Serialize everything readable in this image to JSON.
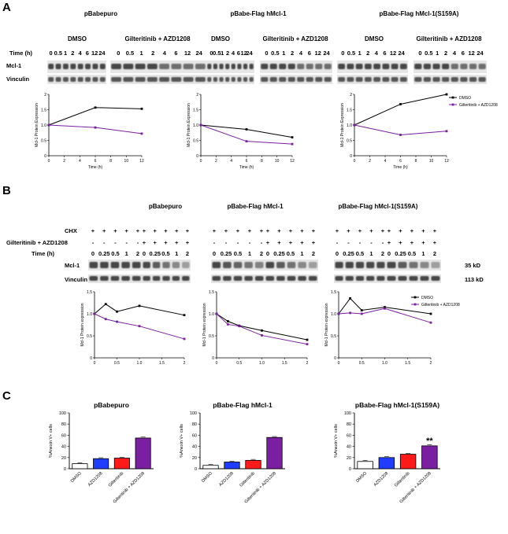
{
  "panels": {
    "a": "A",
    "b": "B",
    "c": "C"
  },
  "blot_a": {
    "groups": [
      "pBabepuro",
      "pBabe-Flag hMcl-1",
      "pBabe-Flag hMcl-1(S159A)"
    ],
    "treat_dmso": "DMSO",
    "treat_combo": "Gilteritinib + AZD1208",
    "time_label": "Time (h)",
    "times": [
      "0",
      "0.5",
      "1",
      "2",
      "4",
      "6",
      "12",
      "24"
    ],
    "rows": [
      "Mcl-1",
      "Vinculin"
    ]
  },
  "blot_b": {
    "groups": [
      "pBabepuro",
      "pBabe-Flag hMcl-1",
      "pBabe-Flag hMcl-1(S159A)"
    ],
    "cond_chx": "CHX",
    "cond_drug": "Gilteritinib + AZD1208",
    "time_label": "Time (h)",
    "plus": "+",
    "minus": "-",
    "times": [
      "0",
      "0.25",
      "0.5",
      "1",
      "2"
    ],
    "rows": [
      "Mcl-1",
      "Vinculin"
    ],
    "size_mcl1": "35 kD",
    "size_vinculin": "113 kD"
  },
  "chart_data": [
    {
      "id": "A1",
      "type": "line",
      "title": "",
      "xlabel": "Time (h)",
      "ylabel": "Mcl-1 Protein Expression",
      "xlim": [
        0,
        12
      ],
      "ylim": [
        0,
        2.0
      ],
      "xticks": [
        0,
        2,
        4,
        6,
        8,
        10,
        12
      ],
      "yticks": [
        0,
        0.5,
        1.0,
        1.5,
        2.0
      ],
      "series": [
        {
          "name": "DMSO",
          "color": "#000000",
          "x": [
            0,
            6,
            12
          ],
          "y": [
            1.0,
            1.57,
            1.53
          ]
        },
        {
          "name": "Gilteritinib + AZD1208",
          "color": "#7a1fa2",
          "x": [
            0,
            6,
            12
          ],
          "y": [
            1.0,
            0.92,
            0.72
          ]
        }
      ]
    },
    {
      "id": "A2",
      "type": "line",
      "title": "",
      "xlabel": "Time (h)",
      "ylabel": "Mcl-1 Protein Expression",
      "xlim": [
        0,
        12
      ],
      "ylim": [
        0,
        2.0
      ],
      "xticks": [
        0,
        2,
        4,
        6,
        8,
        10,
        12
      ],
      "yticks": [
        0,
        0.5,
        1.0,
        1.5,
        2.0
      ],
      "series": [
        {
          "name": "DMSO",
          "color": "#000000",
          "x": [
            0,
            6,
            12
          ],
          "y": [
            1.0,
            0.86,
            0.6
          ]
        },
        {
          "name": "Gilteritinib + AZD1208",
          "color": "#7a1fa2",
          "x": [
            0,
            6,
            12
          ],
          "y": [
            1.0,
            0.47,
            0.38
          ]
        }
      ]
    },
    {
      "id": "A3",
      "type": "line",
      "title": "",
      "xlabel": "Time (h)",
      "ylabel": "Mcl-1 Protein Expression",
      "xlim": [
        0,
        12
      ],
      "ylim": [
        0,
        2.0
      ],
      "xticks": [
        0,
        2,
        4,
        6,
        8,
        10,
        12
      ],
      "yticks": [
        0,
        0.5,
        1.0,
        1.5,
        2.0
      ],
      "legend": [
        "DMSO",
        "Gilteritinib + AZD1208"
      ],
      "series": [
        {
          "name": "DMSO",
          "color": "#000000",
          "x": [
            0,
            6,
            12
          ],
          "y": [
            1.0,
            1.68,
            2.0
          ]
        },
        {
          "name": "Gilteritinib + AZD1208",
          "color": "#7a1fa2",
          "x": [
            0,
            6,
            12
          ],
          "y": [
            1.0,
            0.68,
            0.8
          ]
        }
      ]
    },
    {
      "id": "B1",
      "type": "line",
      "title": "",
      "xlabel": "",
      "ylabel": "Mcl-1 Protein expression",
      "xlim": [
        0,
        2
      ],
      "ylim": [
        0,
        1.5
      ],
      "xticks": [
        0,
        0.5,
        1.0,
        1.5,
        2.0
      ],
      "yticks": [
        0,
        0.5,
        1.0,
        1.5
      ],
      "series": [
        {
          "name": "DMSO",
          "color": "#000000",
          "x": [
            0,
            0.25,
            0.5,
            1,
            2
          ],
          "y": [
            1.0,
            1.22,
            1.05,
            1.18,
            0.97
          ]
        },
        {
          "name": "Gilteritinib + AZD1208",
          "color": "#7a1fa2",
          "x": [
            0,
            0.25,
            0.5,
            1,
            2
          ],
          "y": [
            1.0,
            0.88,
            0.82,
            0.72,
            0.43
          ]
        }
      ]
    },
    {
      "id": "B2",
      "type": "line",
      "title": "",
      "xlabel": "",
      "ylabel": "Mcl-1 Protein expression",
      "xlim": [
        0,
        2
      ],
      "ylim": [
        0,
        1.5
      ],
      "xticks": [
        0,
        0.5,
        1.0,
        1.5,
        2.0
      ],
      "yticks": [
        0,
        0.5,
        1.0,
        1.5
      ],
      "series": [
        {
          "name": "DMSO",
          "color": "#000000",
          "x": [
            0,
            0.25,
            0.5,
            1,
            2
          ],
          "y": [
            1.0,
            0.83,
            0.73,
            0.62,
            0.41
          ]
        },
        {
          "name": "Gilteritinib + AZD1208",
          "color": "#7a1fa2",
          "x": [
            0,
            0.25,
            0.5,
            1,
            2
          ],
          "y": [
            1.0,
            0.76,
            0.72,
            0.51,
            0.31
          ]
        }
      ]
    },
    {
      "id": "B3",
      "type": "line",
      "title": "",
      "xlabel": "",
      "ylabel": "Mcl-1 Protein expression",
      "xlim": [
        0,
        2
      ],
      "ylim": [
        0,
        1.5
      ],
      "xticks": [
        0,
        0.5,
        1.0,
        1.5,
        2.0
      ],
      "yticks": [
        0,
        0.5,
        1.0,
        1.5
      ],
      "legend": [
        "DMSO",
        "Gilteritinib + AZD1208"
      ],
      "series": [
        {
          "name": "DMSO",
          "color": "#000000",
          "x": [
            0,
            0.25,
            0.5,
            1,
            2
          ],
          "y": [
            1.0,
            1.35,
            1.08,
            1.15,
            1.0
          ]
        },
        {
          "name": "Gilteritinib + AZD1208",
          "color": "#7a1fa2",
          "x": [
            0,
            0.25,
            0.5,
            1,
            2
          ],
          "y": [
            1.0,
            1.02,
            1.0,
            1.12,
            0.8
          ]
        }
      ]
    },
    {
      "id": "C1",
      "type": "bar",
      "title": "pBabepuro",
      "ylabel": "%Anexin V+ cells",
      "ylim": [
        0,
        100
      ],
      "yticks": [
        0,
        20,
        40,
        60,
        80,
        100
      ],
      "categories": [
        "DMSO",
        "AZD1208",
        "Gilteritinib",
        "Gilteritinib + AZD1208"
      ],
      "values": [
        9,
        18,
        19,
        55
      ],
      "colors": [
        "#ffffff",
        "#1f3cff",
        "#ff1a1a",
        "#7a1fa2"
      ],
      "annotation": ""
    },
    {
      "id": "C2",
      "type": "bar",
      "title": "pBabe-Flag hMcl-1",
      "ylabel": "%Anexin V+ cells",
      "ylim": [
        0,
        100
      ],
      "yticks": [
        0,
        20,
        40,
        60,
        80,
        100
      ],
      "categories": [
        "DMSO",
        "AZD1208",
        "Gilteritinib",
        "Gilteritinib + AZD1208"
      ],
      "values": [
        6,
        12,
        15,
        56
      ],
      "colors": [
        "#ffffff",
        "#1f3cff",
        "#ff1a1a",
        "#7a1fa2"
      ],
      "annotation": ""
    },
    {
      "id": "C3",
      "type": "bar",
      "title": "pBabe-Flag hMcl-1(S159A)",
      "ylabel": "%Anexin V+ cells",
      "ylim": [
        0,
        100
      ],
      "yticks": [
        0,
        20,
        40,
        60,
        80,
        100
      ],
      "categories": [
        "DMSO",
        "AZD1208",
        "Gilteritinib",
        "Gilteritinib + AZD1208"
      ],
      "values": [
        13,
        20,
        26,
        41
      ],
      "colors": [
        "#ffffff",
        "#1f3cff",
        "#ff1a1a",
        "#7a1fa2"
      ],
      "annotation": "**"
    }
  ]
}
